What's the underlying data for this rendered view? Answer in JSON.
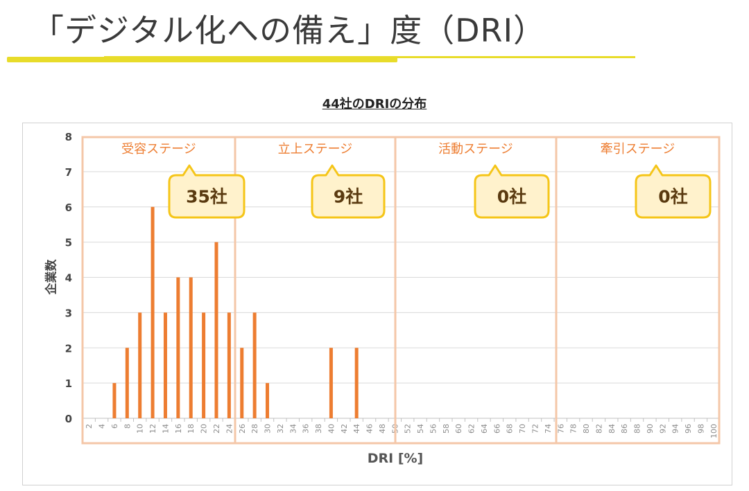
{
  "header": {
    "title": "「デジタル化への備え」度（DRI）"
  },
  "chart_data": {
    "type": "bar",
    "title": "44社のDRIの分布",
    "xlabel": "DRI [%]",
    "ylabel": "企業数",
    "ylim": [
      0,
      8
    ],
    "yticks": [
      0,
      1,
      2,
      3,
      4,
      5,
      6,
      7,
      8
    ],
    "grid": true,
    "categories": [
      "2",
      "4",
      "6",
      "8",
      "10",
      "12",
      "14",
      "16",
      "18",
      "20",
      "22",
      "24",
      "26",
      "28",
      "30",
      "32",
      "34",
      "36",
      "38",
      "40",
      "42",
      "44",
      "46",
      "48",
      "50",
      "52",
      "54",
      "56",
      "58",
      "60",
      "62",
      "64",
      "66",
      "68",
      "70",
      "72",
      "74",
      "76",
      "78",
      "80",
      "82",
      "84",
      "86",
      "88",
      "90",
      "92",
      "94",
      "96",
      "98",
      "100"
    ],
    "values": [
      0,
      0,
      1,
      2,
      3,
      6,
      3,
      4,
      4,
      3,
      5,
      3,
      2,
      3,
      1,
      0,
      0,
      0,
      0,
      2,
      0,
      2,
      0,
      0,
      0,
      0,
      0,
      0,
      0,
      0,
      0,
      0,
      0,
      0,
      0,
      0,
      0,
      0,
      0,
      0,
      0,
      0,
      0,
      0,
      0,
      0,
      0,
      0,
      0,
      0
    ],
    "bar_color": "#ed7d31",
    "stages": [
      {
        "name": "受容ステージ",
        "count_label": "35社"
      },
      {
        "name": "立上ステージ",
        "count_label": "9社"
      },
      {
        "name": "活動ステージ",
        "count_label": "0社"
      },
      {
        "name": "牽引ステージ",
        "count_label": "0社"
      }
    ],
    "stage_border_color": "#f4c7a8",
    "callout_fill": "#fff2cc",
    "callout_border": "#f5c518"
  }
}
